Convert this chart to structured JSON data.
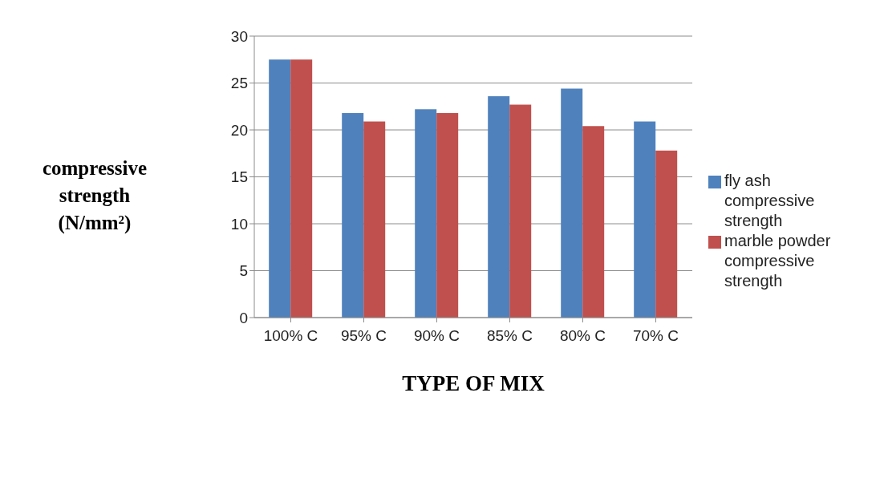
{
  "chart_data": {
    "type": "bar",
    "xlabel": "TYPE OF MIX",
    "ylabel": "compressive strength (N/mm²)",
    "categories": [
      "100% C",
      "95% C",
      "90% C",
      "85% C",
      "80% C",
      "70% C"
    ],
    "series": [
      {
        "name": "fly ash compressive strength",
        "color": "#4f81bd",
        "values": [
          27.5,
          21.8,
          22.2,
          23.6,
          24.4,
          20.9
        ]
      },
      {
        "name": "marble powder compressive strength",
        "color": "#c0504d",
        "values": [
          27.5,
          20.9,
          21.8,
          22.7,
          20.4,
          17.8
        ]
      }
    ],
    "ylim": [
      0,
      30
    ],
    "yticks": [
      0,
      5,
      10,
      15,
      20,
      25,
      30
    ],
    "grid": "y",
    "legend": "right"
  }
}
